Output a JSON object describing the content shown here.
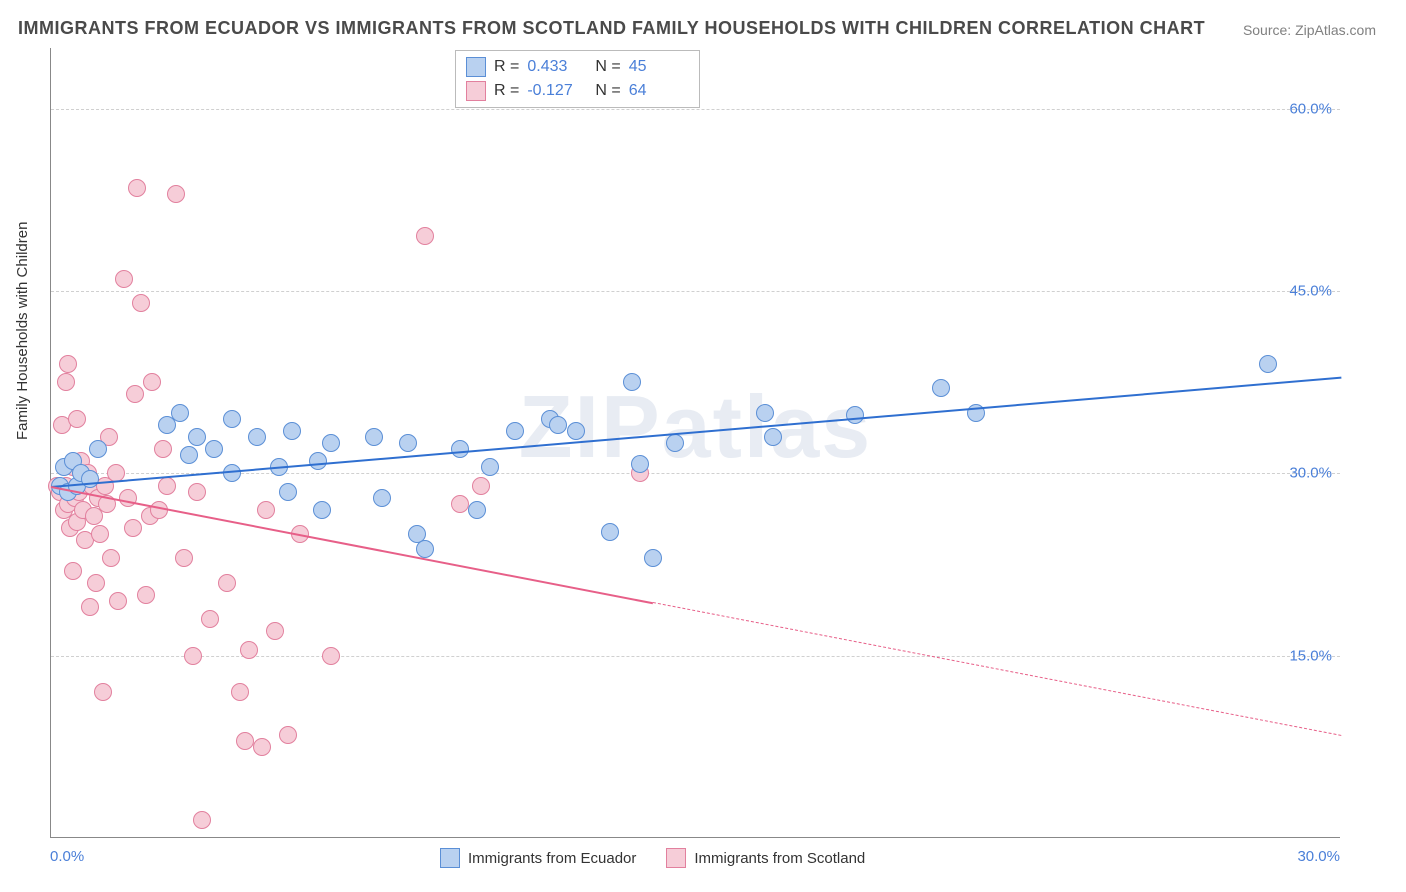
{
  "title": "IMMIGRANTS FROM ECUADOR VS IMMIGRANTS FROM SCOTLAND FAMILY HOUSEHOLDS WITH CHILDREN CORRELATION CHART",
  "source": "Source: ZipAtlas.com",
  "ylabel": "Family Households with Children",
  "watermark": "ZIPatlas",
  "chart": {
    "type": "scatter",
    "background_color": "#ffffff",
    "grid_color": "#d0d0d0",
    "axis_color": "#888888",
    "xlim": [
      0,
      30
    ],
    "ylim": [
      0,
      65
    ],
    "xtick_labels": [
      "0.0%",
      "30.0%"
    ],
    "ytick_values": [
      15,
      30,
      45,
      60
    ],
    "ytick_labels": [
      "15.0%",
      "30.0%",
      "45.0%",
      "60.0%"
    ],
    "tick_fontsize": 15,
    "tick_color": "#4a7fd8",
    "marker_radius": 9,
    "marker_border_width": 1.5,
    "series": [
      {
        "name": "Immigrants from Ecuador",
        "color_fill": "#b9d1f0",
        "color_stroke": "#5b8fd6",
        "R": "0.433",
        "N": "45",
        "trend": {
          "x0": 0,
          "y0": 29,
          "x1": 30,
          "y1": 38,
          "color": "#2f6fd0",
          "width": 2.5,
          "solid_until_x": 30
        },
        "points": [
          [
            0.2,
            29
          ],
          [
            0.3,
            30.5
          ],
          [
            0.4,
            28.5
          ],
          [
            0.5,
            31
          ],
          [
            0.6,
            29
          ],
          [
            0.7,
            30
          ],
          [
            0.9,
            29.5
          ],
          [
            1.1,
            32
          ],
          [
            2.7,
            34
          ],
          [
            3.0,
            35
          ],
          [
            3.2,
            31.5
          ],
          [
            3.4,
            33
          ],
          [
            3.8,
            32
          ],
          [
            4.2,
            30
          ],
          [
            4.2,
            34.5
          ],
          [
            4.8,
            33
          ],
          [
            5.3,
            30.5
          ],
          [
            5.5,
            28.5
          ],
          [
            5.6,
            33.5
          ],
          [
            6.2,
            31
          ],
          [
            6.3,
            27
          ],
          [
            6.5,
            32.5
          ],
          [
            7.5,
            33
          ],
          [
            7.7,
            28
          ],
          [
            8.3,
            32.5
          ],
          [
            8.5,
            25
          ],
          [
            8.7,
            23.8
          ],
          [
            9.5,
            32
          ],
          [
            9.9,
            27
          ],
          [
            10.2,
            30.5
          ],
          [
            10.8,
            33.5
          ],
          [
            11.6,
            34.5
          ],
          [
            11.8,
            34
          ],
          [
            12.2,
            33.5
          ],
          [
            13.0,
            25.2
          ],
          [
            13.5,
            37.5
          ],
          [
            13.7,
            30.8
          ],
          [
            14.0,
            23
          ],
          [
            14.5,
            32.5
          ],
          [
            16.6,
            35
          ],
          [
            16.8,
            33
          ],
          [
            18.7,
            34.8
          ],
          [
            20.7,
            37
          ],
          [
            21.5,
            35
          ],
          [
            28.3,
            39
          ]
        ]
      },
      {
        "name": "Immigrants from Scotland",
        "color_fill": "#f6cdd8",
        "color_stroke": "#e2809e",
        "R": "-0.127",
        "N": "64",
        "trend": {
          "x0": 0,
          "y0": 29,
          "x1": 30,
          "y1": 8.5,
          "color": "#e75f88",
          "width": 2,
          "solid_until_x": 14
        },
        "points": [
          [
            0.15,
            29
          ],
          [
            0.2,
            28.5
          ],
          [
            0.25,
            34
          ],
          [
            0.3,
            27
          ],
          [
            0.35,
            37.5
          ],
          [
            0.35,
            29
          ],
          [
            0.4,
            39
          ],
          [
            0.4,
            27.5
          ],
          [
            0.45,
            25.5
          ],
          [
            0.5,
            30.5
          ],
          [
            0.5,
            22
          ],
          [
            0.55,
            28
          ],
          [
            0.6,
            34.5
          ],
          [
            0.6,
            26
          ],
          [
            0.65,
            28.5
          ],
          [
            0.7,
            31
          ],
          [
            0.75,
            27
          ],
          [
            0.8,
            24.5
          ],
          [
            0.85,
            30
          ],
          [
            0.9,
            19
          ],
          [
            0.95,
            29
          ],
          [
            1.0,
            26.5
          ],
          [
            1.05,
            21
          ],
          [
            1.1,
            28
          ],
          [
            1.15,
            25
          ],
          [
            1.2,
            12
          ],
          [
            1.25,
            29
          ],
          [
            1.3,
            27.5
          ],
          [
            1.35,
            33
          ],
          [
            1.4,
            23
          ],
          [
            1.5,
            30
          ],
          [
            1.55,
            19.5
          ],
          [
            1.7,
            46
          ],
          [
            1.8,
            28
          ],
          [
            1.9,
            25.5
          ],
          [
            1.95,
            36.5
          ],
          [
            2.0,
            53.5
          ],
          [
            2.1,
            44
          ],
          [
            2.2,
            20
          ],
          [
            2.3,
            26.5
          ],
          [
            2.35,
            37.5
          ],
          [
            2.5,
            27
          ],
          [
            2.6,
            32
          ],
          [
            2.7,
            29
          ],
          [
            2.9,
            53
          ],
          [
            3.1,
            23
          ],
          [
            3.3,
            15
          ],
          [
            3.4,
            28.5
          ],
          [
            3.5,
            1.5
          ],
          [
            3.7,
            18
          ],
          [
            4.1,
            21
          ],
          [
            4.4,
            12
          ],
          [
            4.5,
            8
          ],
          [
            4.6,
            15.5
          ],
          [
            4.9,
            7.5
          ],
          [
            5.0,
            27
          ],
          [
            5.2,
            17
          ],
          [
            5.5,
            8.5
          ],
          [
            5.8,
            25
          ],
          [
            6.5,
            15
          ],
          [
            8.7,
            49.5
          ],
          [
            9.5,
            27.5
          ],
          [
            10.0,
            29
          ],
          [
            13.7,
            30
          ]
        ]
      }
    ],
    "bottom_legend": [
      {
        "label": "Immigrants from Ecuador",
        "fill": "#b9d1f0",
        "stroke": "#5b8fd6"
      },
      {
        "label": "Immigrants from Scotland",
        "fill": "#f6cdd8",
        "stroke": "#e2809e"
      }
    ]
  }
}
